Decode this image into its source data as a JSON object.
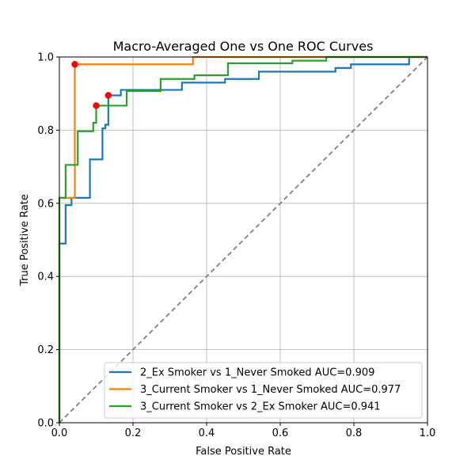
{
  "chart_data": {
    "type": "line",
    "title": "Macro-Averaged One vs One ROC Curves",
    "xlabel": "False Positive Rate",
    "ylabel": "True Positive Rate",
    "xlim": [
      0,
      1
    ],
    "ylim": [
      0,
      1
    ],
    "xticks": [
      "0.0",
      "0.2",
      "0.4",
      "0.6",
      "0.8",
      "1.0"
    ],
    "yticks": [
      "0.0",
      "0.2",
      "0.4",
      "0.6",
      "0.8",
      "1.0"
    ],
    "grid": true,
    "legend_position": "lower-right",
    "diagonal": {
      "style": "dashed",
      "color": "#808080",
      "x": [
        0,
        1
      ],
      "y": [
        0,
        1
      ]
    },
    "series": [
      {
        "name": "2_Ex Smoker vs 1_Never Smoked AUC=0.909",
        "color": "#1f77b4",
        "x": [
          0,
          0,
          0.017,
          0.017,
          0.033,
          0.033,
          0.083,
          0.083,
          0.117,
          0.117,
          0.125,
          0.125,
          0.133,
          0.133,
          0.167,
          0.167,
          0.333,
          0.333,
          0.45,
          0.45,
          0.542,
          0.542,
          0.75,
          0.75,
          0.792,
          0.792,
          0.95,
          0.95,
          1.0
        ],
        "y": [
          0,
          0.49,
          0.49,
          0.595,
          0.595,
          0.615,
          0.615,
          0.72,
          0.72,
          0.805,
          0.805,
          0.815,
          0.815,
          0.895,
          0.895,
          0.91,
          0.91,
          0.93,
          0.93,
          0.94,
          0.94,
          0.96,
          0.96,
          0.97,
          0.97,
          0.98,
          0.98,
          1.0,
          1.0
        ]
      },
      {
        "name": "3_Current Smoker vs 1_Never Smoked AUC=0.977",
        "color": "#ff7f0e",
        "x": [
          0,
          0,
          0.042,
          0.042,
          0.363,
          0.363,
          0.73,
          0.73,
          1.0
        ],
        "y": [
          0,
          0.615,
          0.615,
          0.98,
          0.98,
          1.0,
          1.0,
          1.0,
          1.0
        ]
      },
      {
        "name": "3_Current Smoker vs 2_Ex Smoker AUC=0.941",
        "color": "#2ca02c",
        "x": [
          0,
          0,
          0.017,
          0.017,
          0.05,
          0.05,
          0.092,
          0.092,
          0.1,
          0.1,
          0.183,
          0.183,
          0.275,
          0.275,
          0.367,
          0.367,
          0.458,
          0.458,
          0.633,
          0.633,
          0.725,
          0.725,
          1.0
        ],
        "y": [
          0,
          0.615,
          0.615,
          0.705,
          0.705,
          0.797,
          0.797,
          0.82,
          0.82,
          0.867,
          0.867,
          0.907,
          0.907,
          0.94,
          0.94,
          0.95,
          0.95,
          0.983,
          0.983,
          0.99,
          0.99,
          1.0,
          1.0
        ]
      }
    ],
    "highlight_points": {
      "color": "#ff0000",
      "points": [
        {
          "x": 0.042,
          "y": 0.98
        },
        {
          "x": 0.1,
          "y": 0.867
        },
        {
          "x": 0.133,
          "y": 0.895
        }
      ]
    }
  }
}
